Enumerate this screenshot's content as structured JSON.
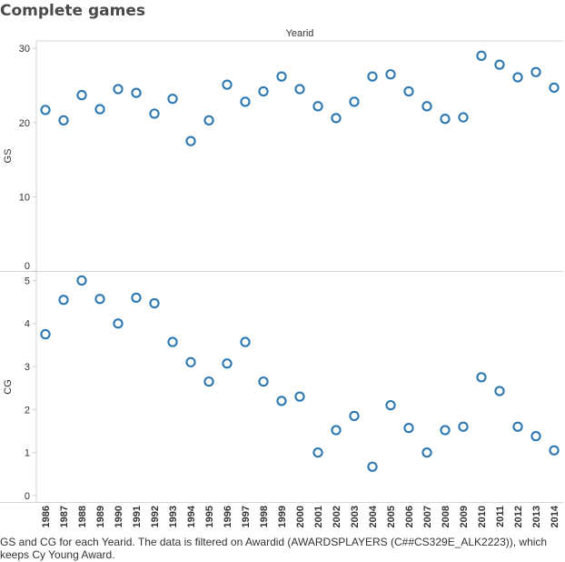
{
  "title": "Complete games",
  "caption": "GS and CG for each Yearid. The data is filtered on Awardid (AWARDSPLAYERS (C##CS329E_ALK2223)), which keeps Cy Young Award.",
  "chart_data": {
    "type": "scatter",
    "column_header": "Yearid",
    "x": [
      1986,
      1987,
      1988,
      1989,
      1990,
      1991,
      1992,
      1993,
      1994,
      1995,
      1996,
      1997,
      1998,
      1999,
      2000,
      2001,
      2002,
      2003,
      2004,
      2005,
      2006,
      2007,
      2008,
      2009,
      2010,
      2011,
      2012,
      2013,
      2014
    ],
    "x_tick_labels": [
      "1986",
      "1987",
      "1988",
      "1989",
      "1990",
      "1991",
      "1992",
      "1993",
      "1994",
      "1995",
      "1996",
      "1997",
      "1998",
      "1999",
      "2000",
      "2001",
      "2002",
      "2003",
      "2004",
      "2005",
      "2006",
      "2007",
      "2008",
      "2009",
      "2010",
      "2011",
      "2012",
      "2013",
      "2014"
    ],
    "panels": [
      {
        "name": "GS",
        "ylabel": "GS",
        "ylim": [
          0,
          31
        ],
        "yticks": [
          0,
          10,
          20,
          30
        ],
        "values": [
          21.7,
          20.3,
          23.7,
          21.8,
          24.5,
          24.0,
          21.2,
          23.2,
          17.5,
          20.3,
          25.1,
          22.8,
          24.2,
          26.2,
          24.5,
          22.2,
          20.6,
          22.8,
          26.2,
          26.5,
          24.2,
          22.2,
          20.5,
          20.7,
          29.0,
          27.8,
          26.1,
          26.8,
          24.7
        ]
      },
      {
        "name": "CG",
        "ylabel": "CG",
        "ylim": [
          -0.15,
          5.2
        ],
        "yticks": [
          0,
          1,
          2,
          3,
          4,
          5
        ],
        "values": [
          3.75,
          4.55,
          5.0,
          4.57,
          4.0,
          4.6,
          4.47,
          3.57,
          3.1,
          2.65,
          3.07,
          3.57,
          2.65,
          2.2,
          2.3,
          1.0,
          1.52,
          1.85,
          0.67,
          2.1,
          1.57,
          1.0,
          1.52,
          1.6,
          2.75,
          2.43,
          1.6,
          1.38,
          1.05
        ]
      }
    ],
    "marker": "hollow-circle",
    "color": "#2e78b2",
    "grid": false,
    "legend": "none"
  }
}
